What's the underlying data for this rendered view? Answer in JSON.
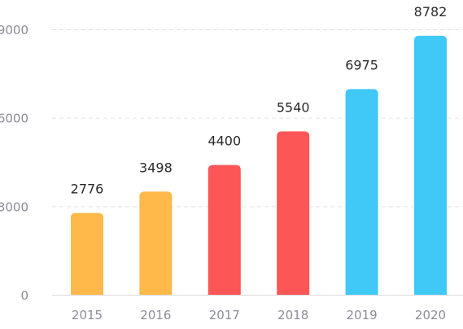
{
  "chart_data": {
    "type": "bar",
    "title": "",
    "xlabel": "",
    "ylabel": "",
    "categories": [
      "2015",
      "2016",
      "2017",
      "2018",
      "2019",
      "2020"
    ],
    "values": [
      2776,
      3498,
      4400,
      5540,
      6975,
      8782
    ],
    "data_labels": [
      "2776",
      "3498",
      "4400",
      "5540",
      "6975",
      "8782"
    ],
    "bar_colors": [
      "#ffb84a",
      "#ffb84a",
      "#fc5656",
      "#fc5656",
      "#40c8f7",
      "#40c8f7"
    ],
    "yticks": [
      0,
      3000,
      6000,
      9000
    ],
    "ytick_labels": [
      "0",
      "3000",
      "6000",
      "9000"
    ],
    "ylim": [
      0,
      9000
    ],
    "grid": true,
    "legend": "none"
  }
}
